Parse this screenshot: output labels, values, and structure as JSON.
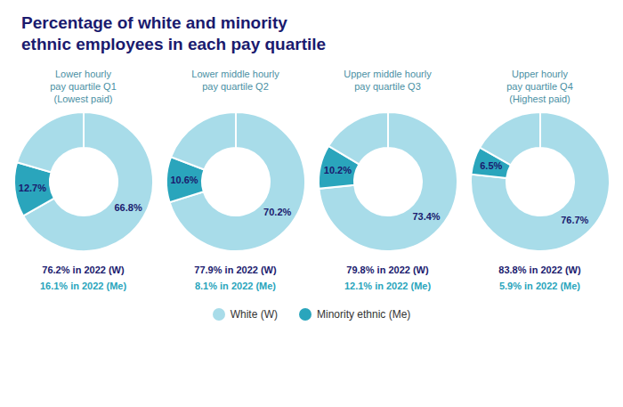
{
  "title": "Percentage of white and minority\nethnic employees in each pay quartile",
  "legend": "bottom",
  "chart_data": [
    {
      "type": "pie",
      "title": "Lower hourly\npay quartile Q1\n(Lowest paid)",
      "categories": [
        "White (W)",
        "Minority ethnic (Me)",
        null
      ],
      "values": [
        66.8,
        12.7,
        20.5
      ],
      "value_labels": [
        "66.8%",
        "12.7%",
        null
      ],
      "colors": [
        "#a8dce9",
        "#2aa5bc",
        "#a8dce9"
      ],
      "annotations": [
        {
          "text": "76.2% in 2022 (W)",
          "color": "#1a1a6e"
        },
        {
          "text": "16.1% in 2022 (Me)",
          "color": "#2aa5bc"
        }
      ]
    },
    {
      "type": "pie",
      "title": "Lower middle hourly\npay quartile Q2",
      "categories": [
        "White (W)",
        "Minority ethnic (Me)",
        null
      ],
      "values": [
        70.2,
        10.6,
        19.2
      ],
      "value_labels": [
        "70.2%",
        "10.6%",
        null
      ],
      "colors": [
        "#a8dce9",
        "#2aa5bc",
        "#a8dce9"
      ],
      "annotations": [
        {
          "text": "77.9% in 2022 (W)",
          "color": "#1a1a6e"
        },
        {
          "text": "8.1% in 2022 (Me)",
          "color": "#2aa5bc"
        }
      ]
    },
    {
      "type": "pie",
      "title": "Upper middle hourly\npay quartile Q3",
      "categories": [
        "White (W)",
        "Minority ethnic (Me)",
        null
      ],
      "values": [
        73.4,
        10.2,
        16.4
      ],
      "value_labels": [
        "73.4%",
        "10.2%",
        null
      ],
      "colors": [
        "#a8dce9",
        "#2aa5bc",
        "#a8dce9"
      ],
      "annotations": [
        {
          "text": "79.8% in 2022 (W)",
          "color": "#1a1a6e"
        },
        {
          "text": "12.1% in 2022 (Me)",
          "color": "#2aa5bc"
        }
      ]
    },
    {
      "type": "pie",
      "title": "Upper hourly\npay quartile Q4\n(Highest paid)",
      "categories": [
        "White (W)",
        "Minority ethnic (Me)",
        null
      ],
      "values": [
        76.7,
        6.5,
        16.8
      ],
      "value_labels": [
        "76.7%",
        "6.5%",
        null
      ],
      "colors": [
        "#a8dce9",
        "#2aa5bc",
        "#a8dce9"
      ],
      "annotations": [
        {
          "text": "83.8% in 2022 (W)",
          "color": "#1a1a6e"
        },
        {
          "text": "5.9% in 2022 (Me)",
          "color": "#2aa5bc"
        }
      ]
    }
  ]
}
